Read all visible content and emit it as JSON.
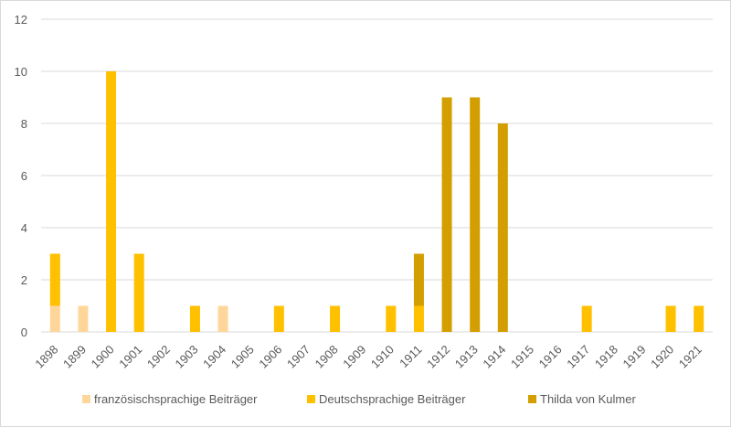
{
  "chart_data": {
    "type": "bar",
    "stacked": true,
    "categories": [
      "1898",
      "1899",
      "1900",
      "1901",
      "1902",
      "1903",
      "1904",
      "1905",
      "1906",
      "1907",
      "1908",
      "1909",
      "1910",
      "1911",
      "1912",
      "1913",
      "1914",
      "1915",
      "1916",
      "1917",
      "1918",
      "1919",
      "1920",
      "1921"
    ],
    "series": [
      {
        "name": "französischsprachige Beiträger",
        "color": "#FFD699",
        "values": [
          1,
          1,
          0,
          0,
          0,
          0,
          1,
          0,
          0,
          0,
          0,
          0,
          0,
          0,
          0,
          0,
          0,
          0,
          0,
          0,
          0,
          0,
          0,
          0
        ]
      },
      {
        "name": "Deutschsprachige Beiträger",
        "color": "#FFC000",
        "values": [
          2,
          0,
          10,
          3,
          0,
          1,
          0,
          0,
          1,
          0,
          1,
          0,
          1,
          1,
          0,
          0,
          0,
          0,
          0,
          1,
          0,
          0,
          1,
          1
        ]
      },
      {
        "name": "Thilda von Kulmer",
        "color": "#D39E00",
        "values": [
          0,
          0,
          0,
          0,
          0,
          0,
          0,
          0,
          0,
          0,
          0,
          0,
          0,
          2,
          9,
          9,
          8,
          0,
          0,
          0,
          0,
          0,
          0,
          0
        ]
      }
    ],
    "ylim": [
      0,
      12
    ],
    "yticks": [
      "0",
      "2",
      "4",
      "6",
      "8",
      "10",
      "12"
    ],
    "grid": true,
    "legend": "bottom"
  }
}
